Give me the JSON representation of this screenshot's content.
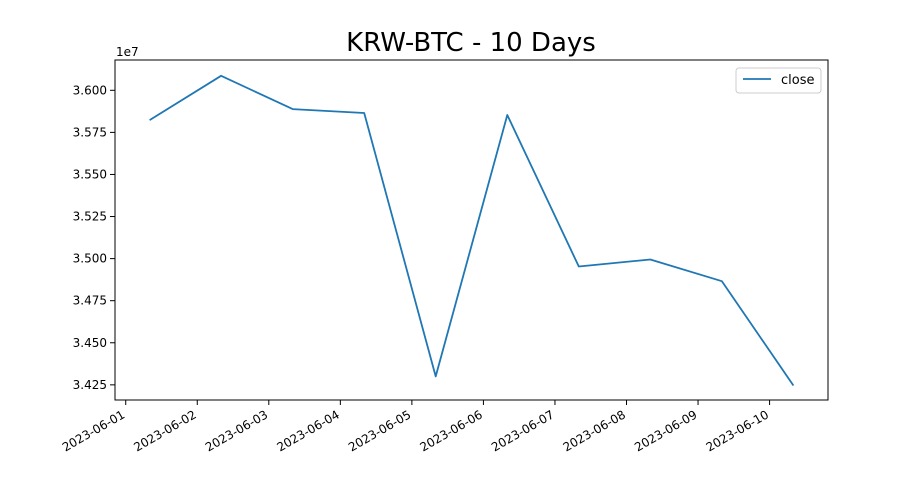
{
  "chart_data": {
    "type": "line",
    "title": "KRW-BTC - 10 Days",
    "xlabel": "",
    "ylabel": "",
    "y_offset_label": "1e7",
    "y_scale_multiplier": 10000000,
    "x": [
      "2023-06-01 08:00",
      "2023-06-02 08:00",
      "2023-06-03 08:00",
      "2023-06-04 08:00",
      "2023-06-05 08:00",
      "2023-06-06 08:00",
      "2023-06-07 08:00",
      "2023-06-08 08:00",
      "2023-06-09 08:00",
      "2023-06-10 08:00"
    ],
    "series": [
      {
        "name": "close",
        "color": "#1f77b4",
        "values": [
          35823000,
          36086000,
          35888000,
          35865000,
          34300000,
          35853000,
          34953000,
          34995000,
          34866000,
          34246000
        ]
      }
    ],
    "xlim": [
      "2023-05-31 20:24",
      "2023-06-10 19:36"
    ],
    "ylim": [
      34160000,
      36180000
    ],
    "x_ticks": [
      "2023-06-01",
      "2023-06-02",
      "2023-06-03",
      "2023-06-04",
      "2023-06-05",
      "2023-06-06",
      "2023-06-07",
      "2023-06-08",
      "2023-06-09",
      "2023-06-10"
    ],
    "y_ticks": [
      34250000,
      34500000,
      34750000,
      35000000,
      35250000,
      35500000,
      35750000,
      36000000
    ],
    "y_tick_labels": [
      "3.425",
      "3.450",
      "3.475",
      "3.500",
      "3.525",
      "3.550",
      "3.575",
      "3.600"
    ],
    "legend": {
      "position": "top-right",
      "entries": [
        "close"
      ]
    },
    "grid": false
  }
}
